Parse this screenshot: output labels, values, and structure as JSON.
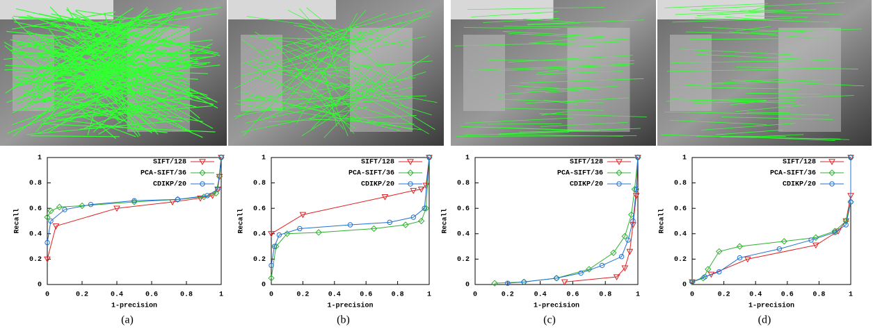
{
  "chart_data": [
    {
      "type": "line",
      "caption": "(a)",
      "xlabel": "1-precision",
      "ylabel": "Recall",
      "xlim": [
        0,
        1
      ],
      "ylim": [
        0,
        1
      ],
      "xticks": [
        0,
        0.2,
        0.4,
        0.6,
        0.8,
        1
      ],
      "yticks": [
        0,
        0.2,
        0.4,
        0.6,
        0.8,
        1
      ],
      "legend": "upper right",
      "series": [
        {
          "name": "SIFT/128",
          "color": "#e02020",
          "marker": "triangle-down",
          "x": [
            0,
            0.05,
            0.4,
            0.72,
            0.88,
            0.95,
            0.98,
            0.99,
            1
          ],
          "values": [
            0.2,
            0.46,
            0.6,
            0.65,
            0.68,
            0.7,
            0.75,
            0.85,
            1
          ]
        },
        {
          "name": "PCA-SIFT/36",
          "color": "#30b030",
          "marker": "diamond",
          "x": [
            0,
            0.02,
            0.07,
            0.2,
            0.5,
            0.75,
            0.9,
            0.97,
            0.99,
            1
          ],
          "values": [
            0.53,
            0.58,
            0.61,
            0.62,
            0.65,
            0.67,
            0.69,
            0.72,
            0.85,
            1
          ]
        },
        {
          "name": "CDIKP/20",
          "color": "#2070d0",
          "marker": "circle",
          "x": [
            0,
            0.02,
            0.1,
            0.25,
            0.5,
            0.75,
            0.92,
            0.98,
            1
          ],
          "values": [
            0.33,
            0.5,
            0.59,
            0.63,
            0.66,
            0.67,
            0.7,
            0.75,
            1
          ]
        }
      ]
    },
    {
      "type": "line",
      "caption": "(b)",
      "xlabel": "1-precision",
      "ylabel": "Recall",
      "xlim": [
        0,
        1
      ],
      "ylim": [
        0,
        1
      ],
      "xticks": [
        0,
        0.2,
        0.4,
        0.6,
        0.8,
        1
      ],
      "yticks": [
        0,
        0.2,
        0.4,
        0.6,
        0.8,
        1
      ],
      "legend": "upper right",
      "series": [
        {
          "name": "SIFT/128",
          "color": "#e02020",
          "marker": "triangle-down",
          "x": [
            0,
            0.2,
            0.72,
            0.9,
            0.95,
            0.98,
            1
          ],
          "values": [
            0.4,
            0.55,
            0.69,
            0.74,
            0.75,
            0.78,
            1
          ]
        },
        {
          "name": "PCA-SIFT/36",
          "color": "#30b030",
          "marker": "diamond",
          "x": [
            0,
            0.03,
            0.1,
            0.3,
            0.65,
            0.85,
            0.95,
            0.98,
            1
          ],
          "values": [
            0.05,
            0.3,
            0.4,
            0.41,
            0.44,
            0.47,
            0.5,
            0.6,
            1
          ]
        },
        {
          "name": "CDIKP/20",
          "color": "#2070d0",
          "marker": "circle",
          "x": [
            0,
            0.02,
            0.05,
            0.18,
            0.5,
            0.75,
            0.9,
            0.97,
            1
          ],
          "values": [
            0.15,
            0.3,
            0.39,
            0.44,
            0.47,
            0.49,
            0.53,
            0.6,
            1
          ]
        }
      ]
    },
    {
      "type": "line",
      "caption": "(c)",
      "xlabel": "1-precision",
      "ylabel": "Recall",
      "xlim": [
        0,
        1
      ],
      "ylim": [
        0,
        1
      ],
      "xticks": [
        0,
        0.2,
        0.4,
        0.6,
        0.8,
        1
      ],
      "yticks": [
        0,
        0.2,
        0.4,
        0.6,
        0.8,
        1
      ],
      "legend": "upper right",
      "series": [
        {
          "name": "SIFT/128",
          "color": "#e02020",
          "marker": "triangle-down",
          "x": [
            0.55,
            0.87,
            0.92,
            0.95,
            0.97,
            0.99,
            1
          ],
          "values": [
            0.02,
            0.06,
            0.13,
            0.26,
            0.47,
            0.7,
            1
          ]
        },
        {
          "name": "PCA-SIFT/36",
          "color": "#30b030",
          "marker": "diamond",
          "x": [
            0.12,
            0.3,
            0.5,
            0.7,
            0.85,
            0.92,
            0.96,
            0.98,
            1
          ],
          "values": [
            0.01,
            0.02,
            0.05,
            0.12,
            0.25,
            0.38,
            0.55,
            0.75,
            1
          ]
        },
        {
          "name": "CDIKP/20",
          "color": "#2070d0",
          "marker": "circle",
          "x": [
            0.2,
            0.3,
            0.5,
            0.65,
            0.78,
            0.9,
            0.94,
            0.97,
            0.99,
            1
          ],
          "values": [
            0.01,
            0.02,
            0.05,
            0.09,
            0.15,
            0.22,
            0.35,
            0.5,
            0.75,
            1
          ]
        }
      ]
    },
    {
      "type": "line",
      "caption": "(d)",
      "xlabel": "1-precision",
      "ylabel": "Recall",
      "xlim": [
        0,
        1
      ],
      "ylim": [
        0,
        1
      ],
      "xticks": [
        0,
        0.2,
        0.4,
        0.6,
        0.8,
        1
      ],
      "yticks": [
        0,
        0.2,
        0.4,
        0.6,
        0.8,
        1
      ],
      "legend": "upper right",
      "series": [
        {
          "name": "SIFT/128",
          "color": "#e02020",
          "marker": "triangle-down",
          "x": [
            0,
            0.12,
            0.35,
            0.78,
            0.92,
            0.97,
            1,
            1
          ],
          "values": [
            0.02,
            0.08,
            0.2,
            0.31,
            0.42,
            0.5,
            0.7,
            1
          ]
        },
        {
          "name": "PCA-SIFT/36",
          "color": "#30b030",
          "marker": "diamond",
          "x": [
            0,
            0.07,
            0.1,
            0.17,
            0.3,
            0.58,
            0.78,
            0.9,
            0.97,
            1,
            1
          ],
          "values": [
            0.02,
            0.05,
            0.12,
            0.26,
            0.3,
            0.34,
            0.37,
            0.42,
            0.5,
            0.65,
            1
          ]
        },
        {
          "name": "CDIKP/20",
          "color": "#2070d0",
          "marker": "circle",
          "x": [
            0,
            0.08,
            0.17,
            0.3,
            0.55,
            0.75,
            0.9,
            0.97,
            1,
            1
          ],
          "values": [
            0.02,
            0.06,
            0.1,
            0.21,
            0.28,
            0.35,
            0.41,
            0.47,
            0.65,
            1
          ]
        }
      ]
    }
  ]
}
